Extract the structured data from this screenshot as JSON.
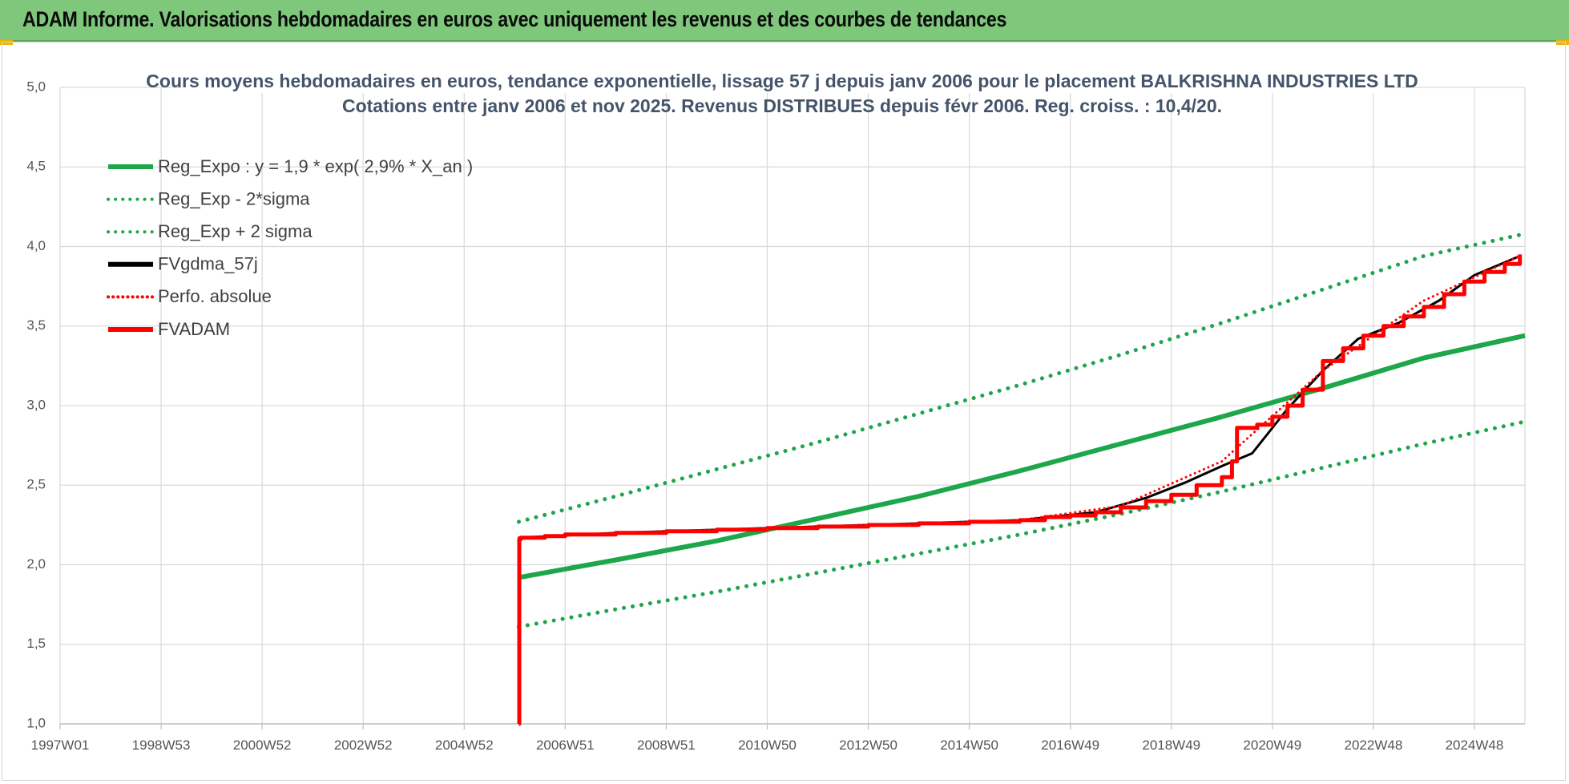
{
  "header": {
    "title": "ADAM Informe. Valorisations hebdomadaires en euros avec uniquement les revenus et des courbes de tendances"
  },
  "colors": {
    "header_bg": "#7ec77b",
    "green": "#1ea64a",
    "red": "#ff0000",
    "black": "#000000",
    "grid": "#d9d9d9"
  },
  "chart_data": {
    "type": "line",
    "title_line1": "Cours moyens hebdomadaires en euros, tendance exponentielle, lissage 57 j depuis janv 2006 pour le placement BALKRISHNA INDUSTRIES LTD",
    "title_line2": "Cotations entre janv 2006 et nov 2025. Revenus DISTRIBUES depuis févr 2006. Reg. croiss. : 10,4/20.",
    "x_range": [
      1997.0,
      2026.0
    ],
    "ylim": [
      1.0,
      5.0
    ],
    "y_ticks": [
      "1,0",
      "1,5",
      "2,0",
      "2,5",
      "3,0",
      "3,5",
      "4,0",
      "4,5",
      "5,0"
    ],
    "x_ticks": [
      {
        "label": "1997W01",
        "x": 1997.0
      },
      {
        "label": "1998W53",
        "x": 1999.0
      },
      {
        "label": "2000W52",
        "x": 2001.0
      },
      {
        "label": "2002W52",
        "x": 2003.0
      },
      {
        "label": "2004W52",
        "x": 2005.0
      },
      {
        "label": "2006W51",
        "x": 2007.0
      },
      {
        "label": "2008W51",
        "x": 2009.0
      },
      {
        "label": "2010W50",
        "x": 2011.0
      },
      {
        "label": "2012W50",
        "x": 2013.0
      },
      {
        "label": "2014W50",
        "x": 2015.0
      },
      {
        "label": "2016W49",
        "x": 2017.0
      },
      {
        "label": "2018W49",
        "x": 2019.0
      },
      {
        "label": "2020W49",
        "x": 2021.0
      },
      {
        "label": "2022W48",
        "x": 2023.0
      },
      {
        "label": "2024W48",
        "x": 2025.0
      }
    ],
    "grid": true,
    "legend_position": "top-left",
    "series": [
      {
        "name": "Reg_Expo : y = 1,9 * exp( 2,9% *  X_an )",
        "color": "#1ea64a",
        "style": "solid",
        "x": [
          2006.08,
          2008,
          2010,
          2012,
          2014,
          2016,
          2018,
          2020,
          2022,
          2024,
          2026
        ],
        "y": [
          1.92,
          2.03,
          2.15,
          2.29,
          2.43,
          2.59,
          2.76,
          2.93,
          3.11,
          3.3,
          3.44
        ]
      },
      {
        "name": "Reg_Exp - 2*sigma",
        "color": "#1ea64a",
        "style": "dotted",
        "x": [
          2006.08,
          2008,
          2010,
          2012,
          2014,
          2016,
          2018,
          2020,
          2022,
          2024,
          2026
        ],
        "y": [
          1.61,
          1.72,
          1.83,
          1.95,
          2.07,
          2.19,
          2.32,
          2.46,
          2.61,
          2.76,
          2.9
        ]
      },
      {
        "name": "Reg_Exp + 2 sigma",
        "color": "#1ea64a",
        "style": "dotted",
        "x": [
          2006.08,
          2008,
          2010,
          2012,
          2014,
          2016,
          2018,
          2020,
          2022,
          2024,
          2026
        ],
        "y": [
          2.27,
          2.43,
          2.6,
          2.77,
          2.95,
          3.13,
          3.32,
          3.52,
          3.73,
          3.94,
          4.08
        ]
      },
      {
        "name": "FVgdma_57j",
        "color": "#000000",
        "style": "solid",
        "x": [
          2006.08,
          2008,
          2010,
          2012,
          2014,
          2016,
          2017.5,
          2018.5,
          2019.3,
          2020.0,
          2020.6,
          2021.3,
          2022.0,
          2022.7,
          2023.5,
          2024.3,
          2025.0,
          2025.9
        ],
        "y": [
          2.17,
          2.2,
          2.22,
          2.24,
          2.26,
          2.28,
          2.33,
          2.42,
          2.52,
          2.62,
          2.7,
          2.98,
          3.22,
          3.42,
          3.52,
          3.66,
          3.82,
          3.94
        ]
      },
      {
        "name": "Perfo. absolue",
        "color": "#ff0000",
        "style": "dotted",
        "x": [
          2006.08,
          2008,
          2010,
          2012,
          2014,
          2016,
          2018,
          2020,
          2022,
          2024,
          2025.9
        ],
        "y": [
          2.17,
          2.2,
          2.22,
          2.24,
          2.26,
          2.28,
          2.37,
          2.65,
          3.22,
          3.66,
          3.94
        ]
      },
      {
        "name": "FVADAM",
        "color": "#ff0000",
        "style": "solid",
        "x": [
          2006.08,
          2006.09,
          2006.12,
          2006.6,
          2007.0,
          2008.0,
          2009.0,
          2010.0,
          2011.0,
          2012.0,
          2013.0,
          2014.0,
          2015.0,
          2016.0,
          2016.5,
          2017.0,
          2017.5,
          2018.0,
          2018.5,
          2019.0,
          2019.5,
          2020.0,
          2020.2,
          2020.3,
          2020.7,
          2021.0,
          2021.3,
          2021.6,
          2022.0,
          2022.4,
          2022.8,
          2023.2,
          2023.6,
          2024.0,
          2024.4,
          2024.8,
          2025.2,
          2025.6,
          2025.9
        ],
        "y": [
          1.0,
          2.16,
          2.17,
          2.18,
          2.19,
          2.2,
          2.21,
          2.22,
          2.23,
          2.24,
          2.25,
          2.26,
          2.27,
          2.28,
          2.3,
          2.31,
          2.33,
          2.36,
          2.4,
          2.44,
          2.5,
          2.55,
          2.65,
          2.86,
          2.88,
          2.93,
          3.0,
          3.1,
          3.28,
          3.36,
          3.44,
          3.5,
          3.56,
          3.62,
          3.7,
          3.78,
          3.84,
          3.89,
          3.95
        ]
      }
    ]
  }
}
